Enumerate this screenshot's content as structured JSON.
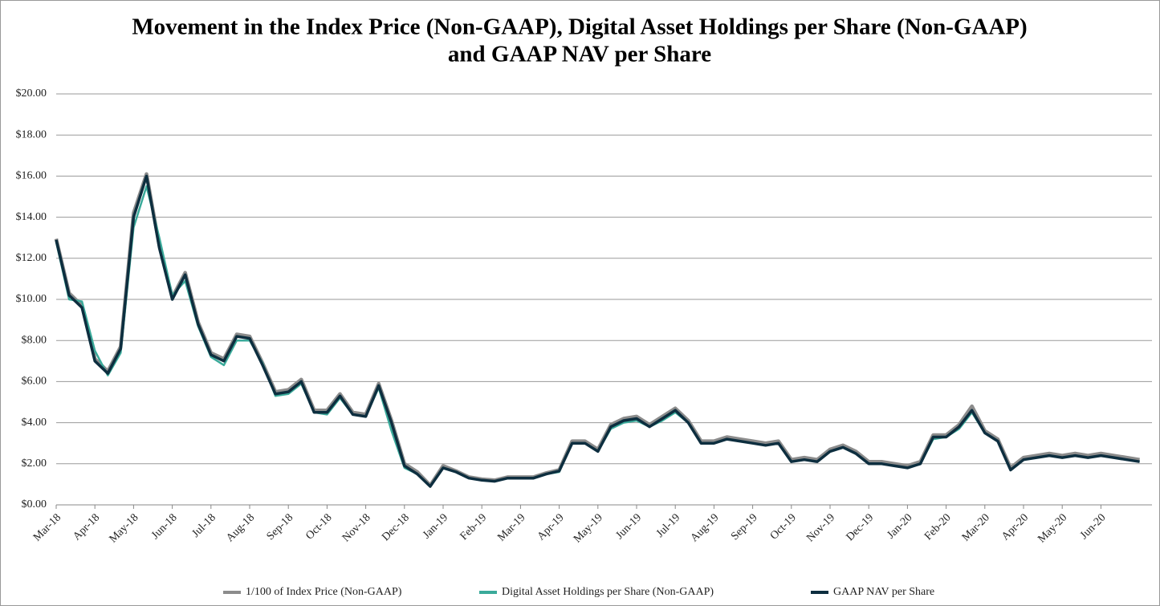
{
  "chart_data": {
    "type": "line",
    "title": [
      "Movement in the Index Price (Non-GAAP), Digital Asset Holdings per Share (Non-GAAP)",
      "and GAAP NAV per Share"
    ],
    "categories": [
      "Mar-18",
      null,
      null,
      "Apr-18",
      null,
      null,
      "May-18",
      null,
      null,
      "Jun-18",
      null,
      null,
      "Jul-18",
      null,
      null,
      "Aug-18",
      null,
      null,
      "Sep-18",
      null,
      null,
      "Oct-18",
      null,
      null,
      "Nov-18",
      null,
      null,
      "Dec-18",
      null,
      null,
      "Jan-19",
      null,
      null,
      "Feb-19",
      null,
      null,
      "Mar-19",
      null,
      null,
      "Apr-19",
      null,
      null,
      "May-19",
      null,
      null,
      "Jun-19",
      null,
      null,
      "Jul-19",
      null,
      null,
      "Aug-19",
      null,
      null,
      "Sep-19",
      null,
      null,
      "Oct-19",
      null,
      null,
      "Nov-19",
      null,
      null,
      "Dec-19",
      null,
      null,
      "Jan-20",
      null,
      null,
      "Feb-20",
      null,
      null,
      "Mar-20",
      null,
      null,
      "Apr-20",
      null,
      null,
      "May-20",
      null,
      null,
      "Jun-20",
      null,
      null,
      null
    ],
    "series": [
      {
        "name": "1/100 of Index Price (Non-GAAP)",
        "color": "#8c8c8c",
        "values": [
          12.95,
          10.3,
          9.7,
          7.1,
          6.5,
          7.7,
          14.2,
          16.1,
          12.6,
          10.1,
          11.3,
          8.9,
          7.4,
          7.1,
          8.3,
          8.2,
          6.9,
          5.5,
          5.6,
          6.1,
          4.6,
          4.6,
          5.4,
          4.5,
          4.4,
          5.9,
          4.1,
          2.0,
          1.6,
          0.95,
          1.9,
          1.65,
          1.35,
          1.25,
          1.2,
          1.35,
          1.35,
          1.35,
          1.55,
          1.7,
          3.1,
          3.1,
          2.7,
          3.9,
          4.2,
          4.3,
          3.9,
          4.3,
          4.7,
          4.1,
          3.1,
          3.1,
          3.3,
          3.2,
          3.1,
          3.0,
          3.1,
          2.2,
          2.3,
          2.2,
          2.7,
          2.9,
          2.6,
          2.1,
          2.1,
          2.0,
          1.9,
          2.1,
          3.4,
          3.4,
          3.9,
          4.8,
          3.6,
          3.2,
          1.8,
          2.3,
          2.4,
          2.5,
          2.4,
          2.5,
          2.4,
          2.5,
          2.4,
          2.3,
          2.2
        ]
      },
      {
        "name": "Digital Asset Holdings per Share (Non-GAAP)",
        "color": "#3aaa9a",
        "values": [
          12.8,
          10.0,
          9.9,
          7.5,
          6.3,
          7.4,
          13.5,
          15.5,
          13.0,
          10.2,
          10.9,
          8.7,
          7.2,
          6.8,
          8.0,
          8.0,
          6.9,
          5.3,
          5.4,
          5.9,
          4.5,
          4.4,
          5.2,
          4.4,
          4.3,
          5.7,
          3.6,
          1.8,
          1.5,
          0.9,
          1.8,
          1.6,
          1.3,
          1.2,
          1.15,
          1.3,
          1.3,
          1.3,
          1.5,
          1.6,
          3.0,
          3.0,
          2.6,
          3.7,
          4.0,
          4.1,
          3.8,
          4.1,
          4.5,
          4.0,
          3.0,
          3.0,
          3.2,
          3.1,
          3.0,
          2.9,
          3.0,
          2.1,
          2.2,
          2.1,
          2.6,
          2.8,
          2.5,
          2.0,
          2.0,
          1.9,
          1.8,
          2.0,
          3.2,
          3.3,
          3.7,
          4.5,
          3.5,
          3.1,
          1.7,
          2.2,
          2.3,
          2.4,
          2.3,
          2.4,
          2.3,
          2.4,
          2.3,
          2.2,
          2.1
        ]
      },
      {
        "name": "GAAP NAV per Share",
        "color": "#0d2e3f",
        "values": [
          12.9,
          10.2,
          9.6,
          7.0,
          6.4,
          7.6,
          14.0,
          16.0,
          12.5,
          10.0,
          11.2,
          8.8,
          7.3,
          7.0,
          8.2,
          8.1,
          6.8,
          5.4,
          5.5,
          6.0,
          4.5,
          4.5,
          5.3,
          4.4,
          4.3,
          5.8,
          4.0,
          1.9,
          1.5,
          0.9,
          1.8,
          1.6,
          1.3,
          1.2,
          1.15,
          1.3,
          1.3,
          1.3,
          1.5,
          1.65,
          3.0,
          3.0,
          2.6,
          3.8,
          4.1,
          4.2,
          3.8,
          4.2,
          4.6,
          4.0,
          3.0,
          3.0,
          3.2,
          3.1,
          3.0,
          2.9,
          3.0,
          2.1,
          2.2,
          2.1,
          2.6,
          2.8,
          2.5,
          2.0,
          2.0,
          1.9,
          1.8,
          2.0,
          3.3,
          3.3,
          3.8,
          4.6,
          3.5,
          3.1,
          1.7,
          2.2,
          2.3,
          2.4,
          2.3,
          2.4,
          2.3,
          2.4,
          2.3,
          2.2,
          2.1
        ]
      }
    ],
    "ylim": [
      0,
      20
    ],
    "yticks": [
      {
        "value": 0,
        "label": "$0.00"
      },
      {
        "value": 2,
        "label": "$2.00"
      },
      {
        "value": 4,
        "label": "$4.00"
      },
      {
        "value": 6,
        "label": "$6.00"
      },
      {
        "value": 8,
        "label": "$8.00"
      },
      {
        "value": 10,
        "label": "$10.00"
      },
      {
        "value": 12,
        "label": "$12.00"
      },
      {
        "value": 14,
        "label": "$14.00"
      },
      {
        "value": 16,
        "label": "$16.00"
      },
      {
        "value": 18,
        "label": "$18.00"
      },
      {
        "value": 20,
        "label": "$20.00"
      }
    ],
    "grid": true,
    "legend": "bottom"
  }
}
